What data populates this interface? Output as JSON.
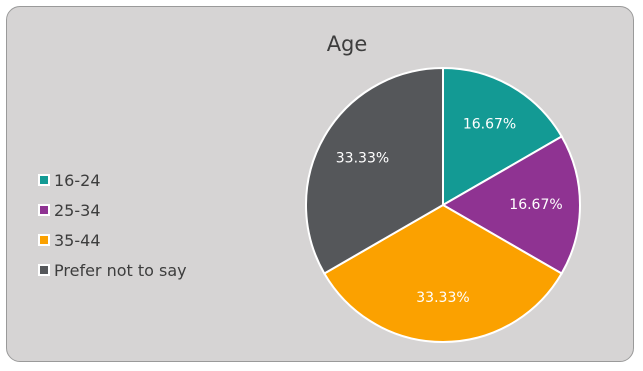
{
  "chart_data": {
    "type": "pie",
    "title": "Age",
    "categories": [
      "16-24",
      "25-34",
      "35-44",
      "Prefer not to say"
    ],
    "values": [
      16.67,
      16.67,
      33.33,
      33.33
    ],
    "data_labels": [
      "16.67%",
      "16.67%",
      "33.33%",
      "33.33%"
    ],
    "colors": [
      "#139a94",
      "#8f3392",
      "#fba100",
      "#55575a"
    ],
    "label_colors": [
      "#ffffff",
      "#ffffff",
      "#ffffff",
      "#ffffff"
    ],
    "legend_placement": "left",
    "start_angle": "top",
    "direction": "clockwise"
  }
}
